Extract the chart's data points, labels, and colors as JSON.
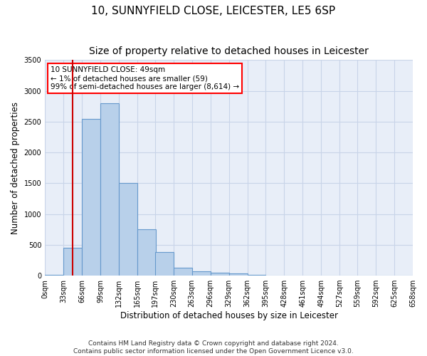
{
  "title_line1": "10, SUNNYFIELD CLOSE, LEICESTER, LE5 6SP",
  "title_line2": "Size of property relative to detached houses in Leicester",
  "xlabel": "Distribution of detached houses by size in Leicester",
  "ylabel": "Number of detached properties",
  "annotation_lines": [
    "10 SUNNYFIELD CLOSE: 49sqm",
    "← 1% of detached houses are smaller (59)",
    "99% of semi-detached houses are larger (8,614) →"
  ],
  "bar_left_edges": [
    0,
    33,
    66,
    99,
    132,
    165,
    197,
    230,
    263,
    296,
    329,
    362,
    395,
    428,
    461,
    494,
    527,
    559,
    592,
    625
  ],
  "bar_heights": [
    10,
    450,
    2550,
    2800,
    1500,
    750,
    380,
    130,
    70,
    50,
    30,
    10,
    5,
    2,
    1,
    0,
    0,
    0,
    0,
    0
  ],
  "bin_width": 33,
  "bar_color": "#b8d0ea",
  "bar_edge_color": "#6699cc",
  "red_line_x": 49,
  "red_line_color": "#cc0000",
  "ylim": [
    0,
    3500
  ],
  "xlim": [
    0,
    658
  ],
  "yticks": [
    0,
    500,
    1000,
    1500,
    2000,
    2500,
    3000,
    3500
  ],
  "xtick_labels": [
    "0sqm",
    "33sqm",
    "66sqm",
    "99sqm",
    "132sqm",
    "165sqm",
    "197sqm",
    "230sqm",
    "263sqm",
    "296sqm",
    "329sqm",
    "362sqm",
    "395sqm",
    "428sqm",
    "461sqm",
    "494sqm",
    "527sqm",
    "559sqm",
    "592sqm",
    "625sqm",
    "658sqm"
  ],
  "xtick_positions": [
    0,
    33,
    66,
    99,
    132,
    165,
    197,
    230,
    263,
    296,
    329,
    362,
    395,
    428,
    461,
    494,
    527,
    559,
    592,
    625,
    658
  ],
  "grid_color": "#c8d4e8",
  "background_color": "#e8eef8",
  "footer_line1": "Contains HM Land Registry data © Crown copyright and database right 2024.",
  "footer_line2": "Contains public sector information licensed under the Open Government Licence v3.0.",
  "title_fontsize": 11,
  "subtitle_fontsize": 10,
  "axis_label_fontsize": 8.5,
  "tick_fontsize": 7,
  "annotation_fontsize": 7.5,
  "footer_fontsize": 6.5
}
